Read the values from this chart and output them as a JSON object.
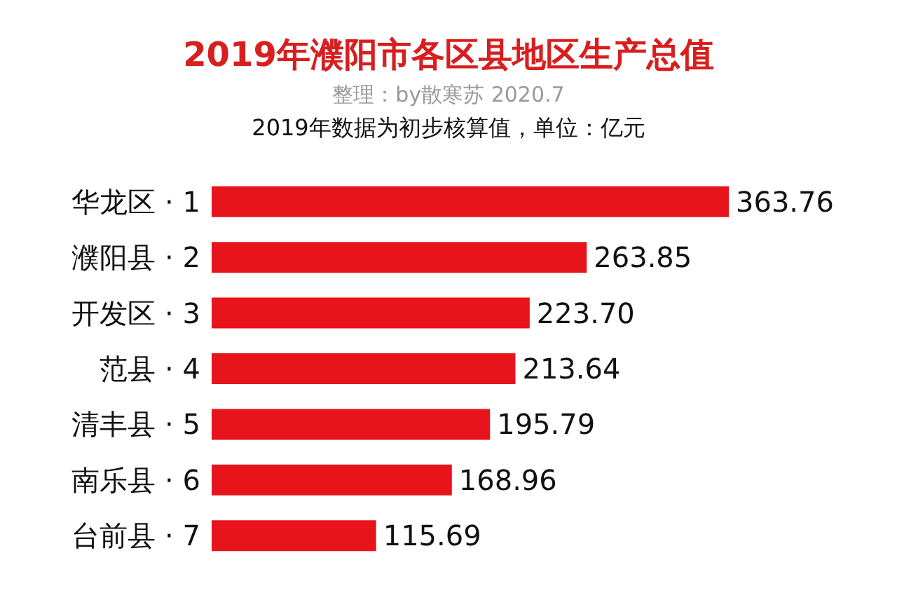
{
  "chart_data": {
    "type": "bar",
    "orientation": "horizontal",
    "title": "2019年濮阳市各区县地区生产总值",
    "subtitle": "整理：by散寒苏 2020.7",
    "annotations": [
      "2019年数据为初步核算值，单位：亿元"
    ],
    "categories": [
      "华龙区 · 1",
      "濮阳县 · 2",
      "开发区 · 3",
      "范县 · 4",
      "清丰县 · 5",
      "南乐县 · 6",
      "台前县 · 7"
    ],
    "values": [
      363.76,
      263.85,
      223.7,
      213.64,
      195.79,
      168.96,
      115.69
    ],
    "value_labels": [
      "363.76",
      "263.85",
      "223.70",
      "213.64",
      "195.79",
      "168.96",
      "115.69"
    ],
    "color": "#e8141c"
  }
}
